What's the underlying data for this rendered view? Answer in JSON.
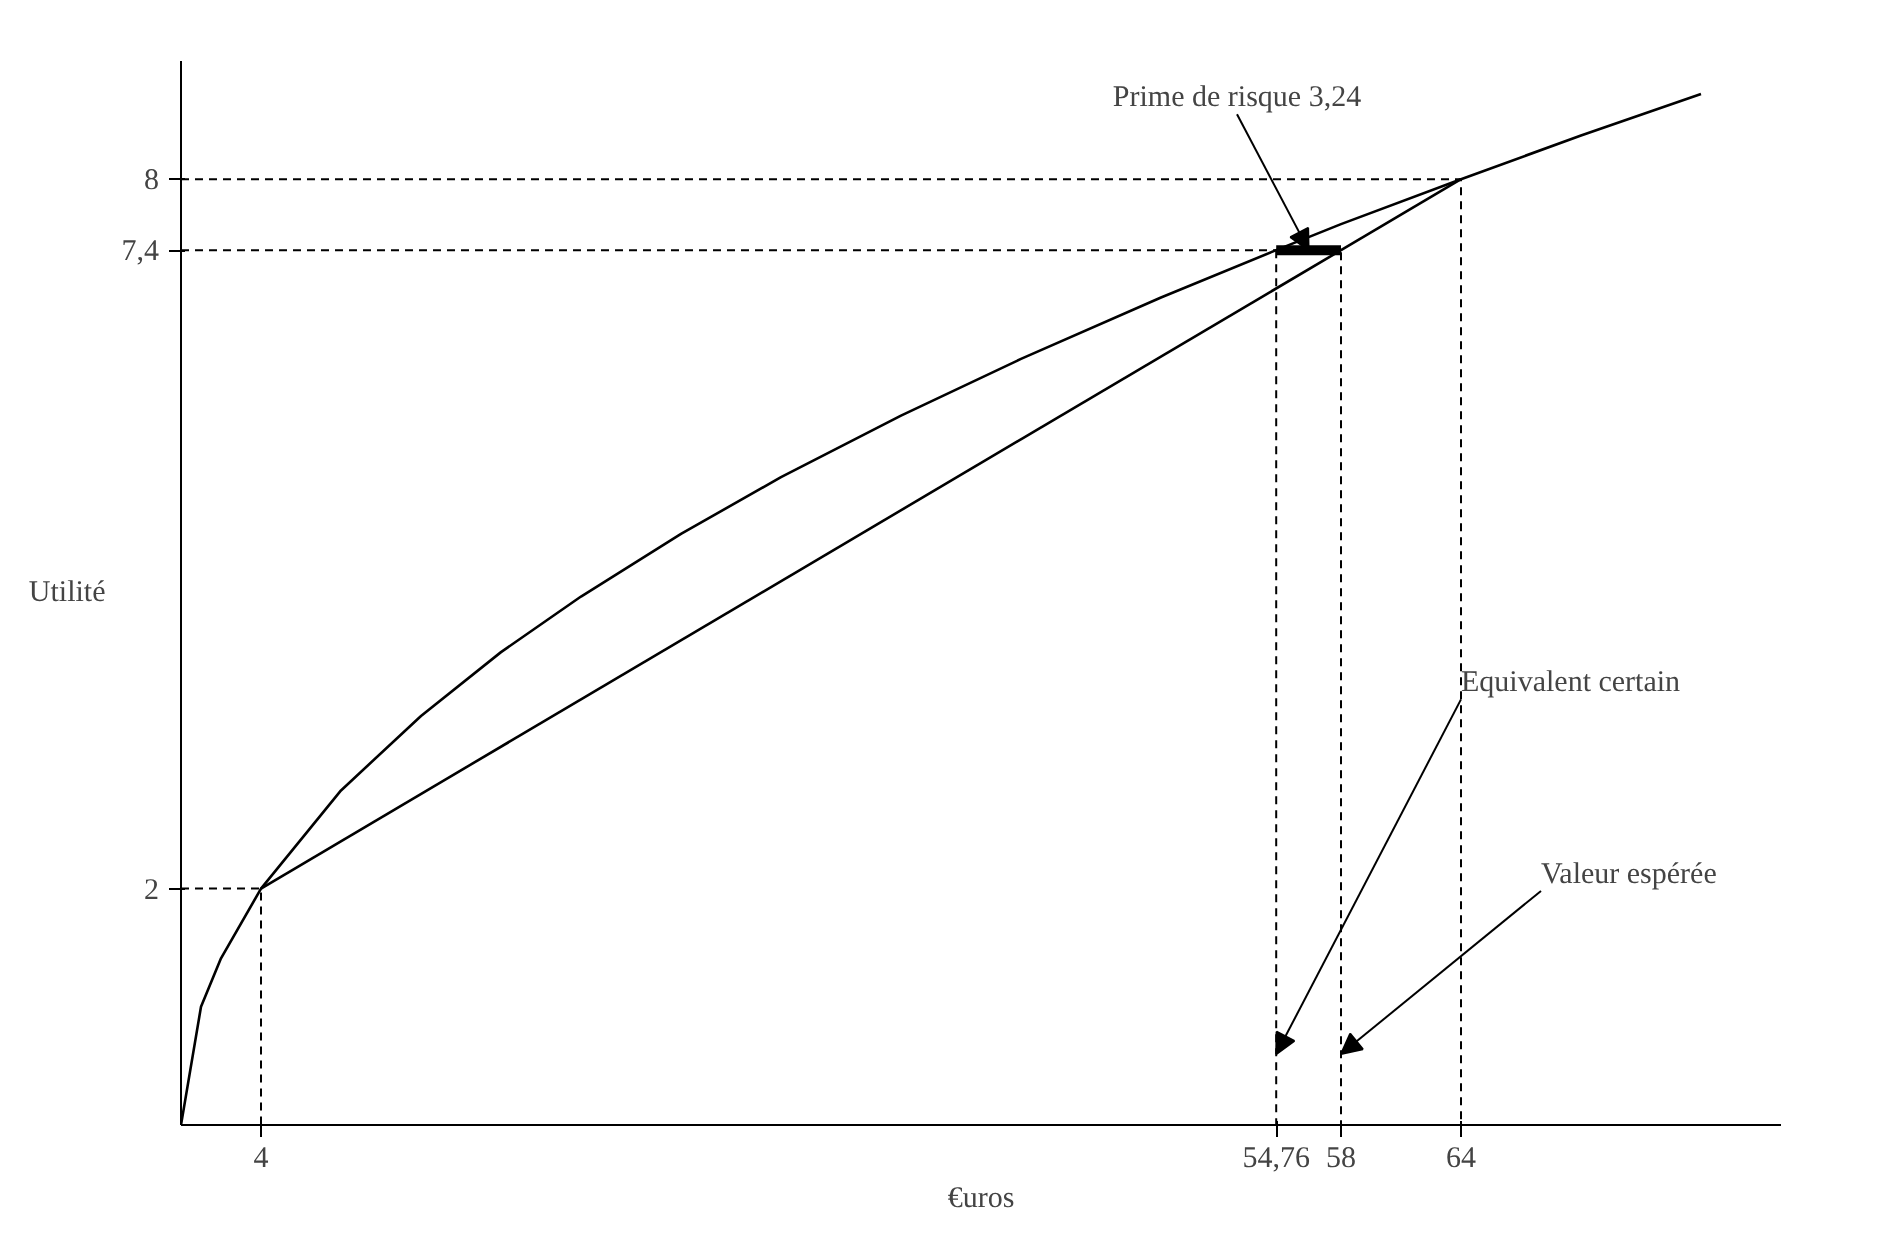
{
  "chart_data": {
    "type": "line",
    "xlabel": "€uros",
    "ylabel": "Utilité",
    "xlim": [
      0,
      80
    ],
    "ylim": [
      0,
      9
    ],
    "xticks": [
      4,
      {
        "value": 54.76,
        "label": "54,76"
      },
      58,
      64
    ],
    "yticks": [
      2,
      {
        "value": 7.4,
        "label": "7,4"
      },
      8
    ],
    "grid": false,
    "marker": "none",
    "series": [
      {
        "color": "#000000",
        "line_style": "solid",
        "x": [
          0,
          1,
          2,
          4,
          8,
          12,
          16,
          20,
          25,
          30,
          36,
          42,
          49,
          54.76,
          58,
          64,
          70,
          76
        ],
        "values": [
          0,
          1,
          1.41,
          2,
          2.83,
          3.46,
          4,
          4.47,
          5,
          5.48,
          6,
          6.48,
          7,
          7.4,
          7.62,
          8,
          8.37,
          8.72
        ]
      },
      {
        "color": "#000000",
        "line_style": "solid",
        "x": [
          4,
          64
        ],
        "values": [
          2,
          8
        ]
      },
      {
        "color": "#000000",
        "line_style": "solid",
        "x": [
          54.76,
          58
        ],
        "values": [
          7.4,
          7.4
        ]
      },
      {
        "color": "#000000",
        "line_style": "dashed",
        "x": [
          0,
          64,
          64
        ],
        "values": [
          8,
          8,
          0
        ]
      },
      {
        "color": "#000000",
        "line_style": "dashed",
        "x": [
          0,
          58,
          58
        ],
        "values": [
          7.4,
          7.4,
          0
        ]
      },
      {
        "color": "#000000",
        "line_style": "dashed",
        "x": [
          54.76,
          54.76
        ],
        "values": [
          7.4,
          0
        ]
      },
      {
        "color": "#000000",
        "line_style": "dashed",
        "x": [
          0,
          4,
          4
        ],
        "values": [
          2,
          2,
          0
        ]
      }
    ],
    "annotations": [
      {
        "text": "Prime de risque 3,24",
        "x": 56.38,
        "y": 7.4
      },
      {
        "text": "Equivalent certain",
        "x": 54.76,
        "y": 0.6
      },
      {
        "text": "Valeur espérée",
        "x": 58,
        "y": 0.6
      }
    ]
  }
}
